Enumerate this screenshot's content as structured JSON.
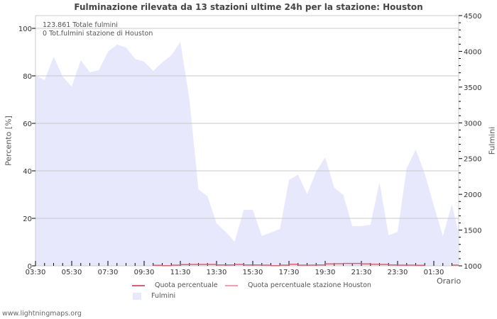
{
  "title": "Fulminazione rilevata da 13 stazioni ultime 24h per la stazione: Houston",
  "annotations": {
    "total": "123.861 Totale fulmini",
    "station_total": "0 Tot.fulmini stazione di Houston"
  },
  "axes": {
    "left_label": "Percento   [%]",
    "right_label": "Fulmini",
    "x_label": "Orario"
  },
  "legend": {
    "series1": "Quota percentuale",
    "series2": "Quota percentuale stazione Houston",
    "series3": "Fulmini"
  },
  "footer": "www.lightningmaps.org",
  "colors": {
    "fulmini_fill": "#e8e8fc",
    "quota": "#d9606c",
    "quota_station": "#f4a0a8",
    "grid": "#c8c8c8"
  },
  "chart_data": {
    "type": "area",
    "title": "Fulminazione rilevata da 13 stazioni ultime 24h per la stazione: Houston",
    "xlabel": "Orario",
    "ylabel": "Percento [%]",
    "y2label": "Fulmini",
    "ylim": [
      0,
      105
    ],
    "y2lim": [
      1000,
      4500
    ],
    "yticks": [
      0,
      20,
      40,
      60,
      80,
      100
    ],
    "y2ticks": [
      1000,
      1500,
      2000,
      2500,
      3000,
      3500,
      4000,
      4500
    ],
    "xticks": [
      "03:30",
      "05:30",
      "07:30",
      "09:30",
      "11:30",
      "13:30",
      "15:30",
      "17:30",
      "19:30",
      "21:30",
      "23:30",
      "01:30"
    ],
    "grid": true,
    "legend_position": "bottom",
    "x": [
      "03:30",
      "04:00",
      "04:30",
      "05:00",
      "05:30",
      "06:00",
      "06:30",
      "07:00",
      "07:30",
      "08:00",
      "08:30",
      "09:00",
      "09:30",
      "10:00",
      "10:30",
      "11:00",
      "11:30",
      "12:00",
      "12:30",
      "13:00",
      "13:30",
      "14:00",
      "14:30",
      "15:00",
      "15:30",
      "16:00",
      "16:30",
      "17:00",
      "17:30",
      "18:00",
      "18:30",
      "19:00",
      "19:30",
      "20:00",
      "20:30",
      "21:00",
      "21:30",
      "22:00",
      "22:30",
      "23:00",
      "23:30",
      "00:00",
      "00:30",
      "01:00",
      "01:30",
      "02:00",
      "02:30",
      "03:00"
    ],
    "series": [
      {
        "name": "Fulmini",
        "axis": "right",
        "type": "area",
        "values": [
          3667,
          3598,
          3925,
          3647,
          3508,
          3875,
          3707,
          3737,
          3994,
          4094,
          4054,
          3895,
          3856,
          3727,
          3846,
          3945,
          4133,
          3330,
          2071,
          1972,
          1595,
          1476,
          1337,
          1783,
          1783,
          1416,
          1466,
          1516,
          2200,
          2279,
          2001,
          2319,
          2517,
          2091,
          1992,
          1555,
          1555,
          1575,
          2170,
          1426,
          1476,
          2368,
          2626,
          2289,
          1843,
          1416,
          1863,
          1446
        ]
      },
      {
        "name": "Quota percentuale",
        "axis": "left",
        "type": "line",
        "values": [
          0,
          0,
          0,
          0,
          0,
          0,
          0,
          0,
          0,
          0,
          0,
          0,
          0,
          0.2,
          0.1,
          0.3,
          0.5,
          0.6,
          0.6,
          0.6,
          0.4,
          0.4,
          0.6,
          0.4,
          0.4,
          0.3,
          0.1,
          0.3,
          0.7,
          0.3,
          0.3,
          0.4,
          0.8,
          0.9,
          1.0,
          1.0,
          0.8,
          0.7,
          0.6,
          0.4,
          0.3,
          0.3,
          0.2,
          0,
          0,
          0,
          0.3,
          0.3
        ]
      },
      {
        "name": "Quota percentuale stazione Houston",
        "axis": "left",
        "type": "line",
        "values": [
          0,
          0,
          0,
          0,
          0,
          0,
          0,
          0,
          0,
          0,
          0,
          0,
          0,
          0,
          0,
          0,
          0,
          0,
          0,
          0,
          0,
          0,
          0,
          0,
          0,
          0,
          0,
          0,
          0,
          0,
          0,
          0,
          0,
          0,
          0,
          0,
          0,
          0,
          0,
          0,
          0,
          0,
          0,
          0,
          0,
          0,
          0,
          0
        ]
      }
    ]
  }
}
